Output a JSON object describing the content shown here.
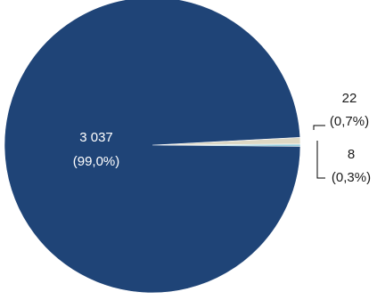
{
  "chart_data": {
    "type": "pie",
    "slices": [
      {
        "value": 3037,
        "value_label": "3 037",
        "percent_label": "(99,0%)",
        "color": "#1f4477"
      },
      {
        "value": 22,
        "value_label": "22",
        "percent_label": "(0,7%)",
        "color": "#ddd8c4"
      },
      {
        "value": 8,
        "value_label": "8",
        "percent_label": "(0,3%)",
        "color": "#93cddd"
      }
    ],
    "title": "",
    "legend": "none"
  }
}
